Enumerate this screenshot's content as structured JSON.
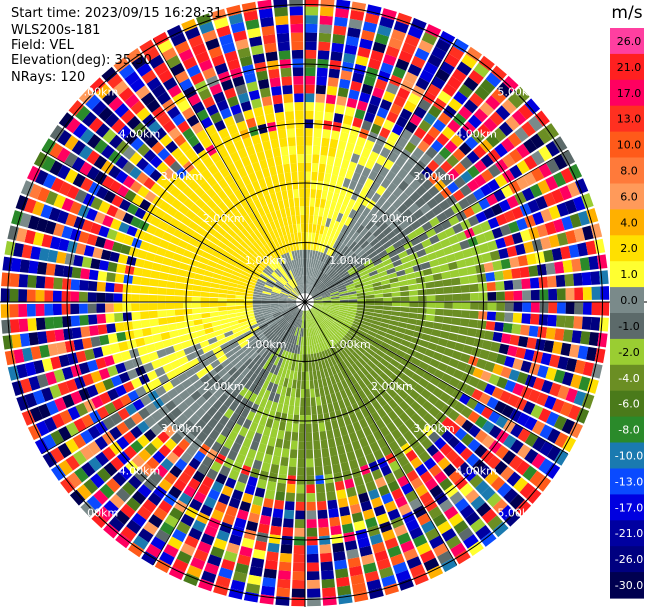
{
  "header": {
    "start_time": "Start time: 2023/09/15 16:28:31",
    "instrument": "WLS200s-181",
    "field": "Field: VEL",
    "elevation": "Elevation(deg): 35.30",
    "nrays": "NRays: 120"
  },
  "colorbar": {
    "unit": "m/s",
    "ticks": [
      "26.0",
      "21.0",
      "17.0",
      "13.0",
      "10.0",
      "8.0",
      "6.0",
      "4.0",
      "2.0",
      "1.0",
      "0.0",
      "-1.0",
      "-2.0",
      "-4.0",
      "-6.0",
      "-8.0",
      "-10.0",
      "-13.0",
      "-17.0",
      "-21.0",
      "-26.0",
      "-30.0"
    ],
    "colors": [
      "#ff3fa0",
      "#ff2020",
      "#ff0060",
      "#ff3020",
      "#ff5a1a",
      "#ff7a3a",
      "#ff9a5a",
      "#ffb000",
      "#ffe000",
      "#ffff30",
      "#7a8a8a",
      "#5c6a6a",
      "#9acd32",
      "#6b8e23",
      "#4a7a1a",
      "#2a8a2a",
      "#1a7ab0",
      "#0a4aff",
      "#0000e0",
      "#0000a0",
      "#000080",
      "#000050"
    ]
  },
  "chart_data": {
    "type": "heatmap",
    "projection": "PPI polar",
    "field": "VEL",
    "units": "m/s",
    "n_rays": 120,
    "elevation_deg": 35.3,
    "range_rings_km": [
      1.0,
      2.0,
      3.0,
      4.0,
      5.0
    ],
    "range_ring_labels": [
      "1.00km",
      "2.00km",
      "3.00km",
      "4.00km",
      "5.00km"
    ],
    "color_levels": [
      26.0,
      21.0,
      17.0,
      13.0,
      10.0,
      8.0,
      6.0,
      4.0,
      2.0,
      1.0,
      0.0,
      -1.0,
      -2.0,
      -4.0,
      -6.0,
      -8.0,
      -10.0,
      -13.0,
      -17.0,
      -21.0,
      -26.0,
      -30.0
    ],
    "pattern": "near range: positive (yellow, 2-4 m/s) north and west, negative (green, -1 to -4 m/s) south and east; noisy high-magnitude values beyond ~3 km"
  }
}
